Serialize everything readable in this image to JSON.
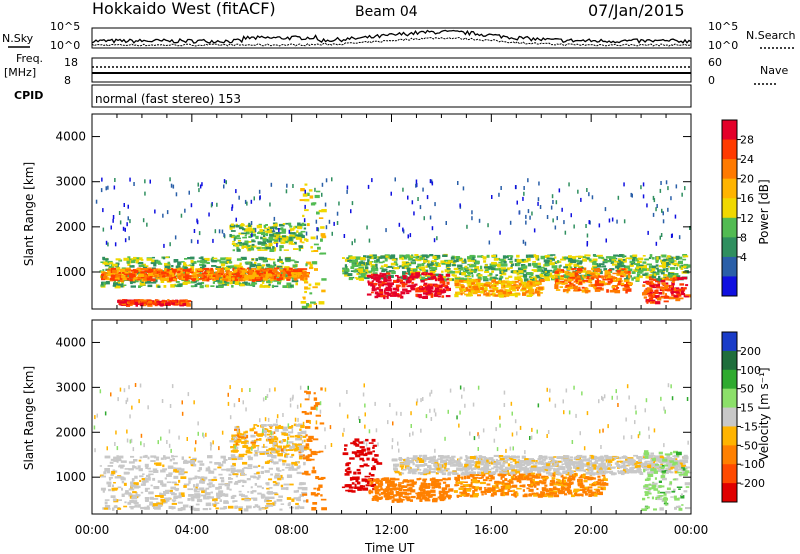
{
  "header": {
    "station": "Hokkaido West (fitACF)",
    "beam": "Beam 04",
    "date": "07/Jan/2015"
  },
  "status_panels": {
    "nsky_label": "N.Sky",
    "nsky_ticks": [
      "10^5",
      "10^0"
    ],
    "nsearch_label": "N.Search",
    "nsearch_ticks": [
      "10^5",
      "10^0"
    ],
    "freq_label_1": "Freq.",
    "freq_label_2": "[MHz]",
    "freq_ticks": [
      "18",
      "8"
    ],
    "nave_label": "Nave",
    "nave_ticks": [
      "60",
      "0"
    ],
    "cpid_label": "CPID",
    "cpid_text": "normal (fast stereo) 153"
  },
  "colorbars": {
    "power": {
      "label": "Power [dB]",
      "ticks": [
        "28",
        "24",
        "20",
        "16",
        "12",
        "8",
        "4"
      ],
      "colors": [
        "#e4002a",
        "#ff3a00",
        "#ff7a00",
        "#ffb400",
        "#f0d800",
        "#52bb52",
        "#2f8f5f",
        "#2a5fa8",
        "#1010e0"
      ]
    },
    "velocity": {
      "label": "Velocity [m s⁻¹]",
      "ticks": [
        "200",
        "100",
        "50",
        "15",
        "-15",
        "-50",
        "-100",
        "-200"
      ],
      "colors": [
        "#1a3cc8",
        "#1f6e3c",
        "#2faa2f",
        "#8ce06a",
        "#c8c8c8",
        "#ffb400",
        "#ff8000",
        "#ff4a00",
        "#e00000"
      ]
    }
  },
  "chart_data": [
    {
      "type": "heatmap",
      "name": "power",
      "xlabel": "",
      "ylabel": "Slant Range [km]",
      "xlim": [
        "00:00",
        "24:00"
      ],
      "ylim": [
        180,
        4500
      ],
      "yticks": [
        "4000",
        "3000",
        "2000",
        "1000"
      ],
      "zlabel": "Power [dB]",
      "features": [
        {
          "t0": 0.3,
          "t1": 8.2,
          "r0": 700,
          "r1": 1350,
          "level": 3
        },
        {
          "t0": 0.3,
          "t1": 8.6,
          "r0": 850,
          "r1": 1100,
          "level": 6
        },
        {
          "t0": 1.0,
          "t1": 3.8,
          "r0": 300,
          "r1": 400,
          "level": 7
        },
        {
          "t0": 5.5,
          "t1": 8.5,
          "r0": 1500,
          "r1": 2100,
          "level": 3
        },
        {
          "t0": 8.3,
          "t1": 9.2,
          "r0": 250,
          "r1": 3000,
          "level": 4
        },
        {
          "t0": 10.0,
          "t1": 23.8,
          "r0": 850,
          "r1": 1400,
          "level": 3
        },
        {
          "t0": 11.0,
          "t1": 14.2,
          "r0": 450,
          "r1": 1000,
          "level": 8
        },
        {
          "t0": 14.5,
          "t1": 18.0,
          "r0": 500,
          "r1": 850,
          "level": 5
        },
        {
          "t0": 18.5,
          "t1": 21.5,
          "r0": 600,
          "r1": 1100,
          "level": 6
        },
        {
          "t0": 22.0,
          "t1": 23.8,
          "r0": 350,
          "r1": 900,
          "level": 7
        }
      ]
    },
    {
      "type": "heatmap",
      "name": "velocity",
      "xlabel": "Time UT",
      "ylabel": "Slant Range [km]",
      "xlim": [
        "00:00",
        "24:00"
      ],
      "ylim": [
        180,
        4500
      ],
      "yticks": [
        "4000",
        "3000",
        "2000",
        "1000"
      ],
      "xticks": [
        "00:00",
        "04:00",
        "08:00",
        "12:00",
        "16:00",
        "20:00",
        "00:00"
      ],
      "zlabel": "Velocity [m s⁻¹]",
      "features": [
        {
          "t0": 0.3,
          "t1": 8.5,
          "r0": 300,
          "r1": 1500,
          "vel": -5
        },
        {
          "t0": 5.5,
          "t1": 8.5,
          "r0": 1500,
          "r1": 2200,
          "vel": -20
        },
        {
          "t0": 8.4,
          "t1": 9.2,
          "r0": 300,
          "r1": 3000,
          "vel": -60
        },
        {
          "t0": 10.0,
          "t1": 11.4,
          "r0": 700,
          "r1": 1900,
          "vel": -200
        },
        {
          "t0": 11.0,
          "t1": 14.3,
          "r0": 500,
          "r1": 1000,
          "vel": -60
        },
        {
          "t0": 14.5,
          "t1": 20.5,
          "r0": 600,
          "r1": 1100,
          "vel": -40
        },
        {
          "t0": 12.0,
          "t1": 23.8,
          "r0": 1100,
          "r1": 1500,
          "vel": -5
        },
        {
          "t0": 22.0,
          "t1": 23.8,
          "r0": 300,
          "r1": 1600,
          "vel": 20
        }
      ]
    }
  ]
}
